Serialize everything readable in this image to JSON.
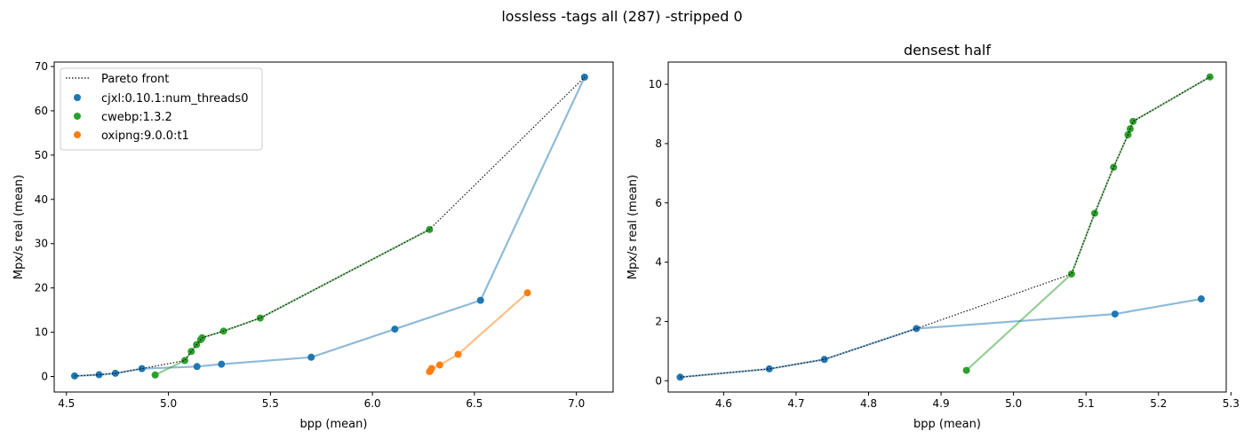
{
  "suptitle": "lossless -tags all (287) -stripped 0",
  "chart_data": [
    {
      "type": "scatter",
      "title": "",
      "xlabel": "bpp (mean)",
      "ylabel": "Mpx/s real (mean)",
      "xlim": [
        4.44,
        7.18
      ],
      "ylim": [
        -3.5,
        71
      ],
      "xticks": [
        4.5,
        5.0,
        5.5,
        6.0,
        6.5,
        7.0
      ],
      "xtick_labels": [
        "4.5",
        "5.0",
        "5.5",
        "6.0",
        "6.5",
        "7.0"
      ],
      "yticks": [
        0,
        10,
        20,
        30,
        40,
        50,
        60,
        70
      ],
      "ytick_labels": [
        "0",
        "10",
        "20",
        "30",
        "40",
        "50",
        "60",
        "70"
      ],
      "legend": {
        "position": "top-left",
        "entries": [
          "Pareto front",
          "cjxl:0.10.1:num_threads0",
          "cwebp:1.3.2",
          "oxipng:9.0.0:t1"
        ]
      },
      "series": [
        {
          "name": "cjxl:0.10.1:num_threads0",
          "color": "#1f77b4",
          "x": [
            4.54,
            4.66,
            4.74,
            4.87,
            5.14,
            5.26,
            5.7,
            6.11,
            6.53,
            7.04
          ],
          "y": [
            0.12,
            0.4,
            0.72,
            1.78,
            2.25,
            2.78,
            4.35,
            10.7,
            17.2,
            67.6
          ]
        },
        {
          "name": "cwebp:1.3.2",
          "color": "#2ca02c",
          "x": [
            4.935,
            5.08,
            5.112,
            5.138,
            5.158,
            5.161,
            5.165,
            5.27,
            5.45,
            6.28
          ],
          "y": [
            0.35,
            3.6,
            5.65,
            7.2,
            8.3,
            8.5,
            8.75,
            10.25,
            13.2,
            33.2
          ]
        },
        {
          "name": "oxipng:9.0.0:t1",
          "color": "#ff7f0e",
          "x": [
            6.28,
            6.285,
            6.29,
            6.33,
            6.42,
            6.76
          ],
          "y": [
            1.1,
            1.4,
            1.8,
            2.6,
            5.0,
            18.9
          ]
        }
      ],
      "pareto_front": {
        "x": [
          4.54,
          4.66,
          4.74,
          4.87,
          5.08,
          5.112,
          5.138,
          5.158,
          5.161,
          5.165,
          5.27,
          5.45,
          6.28,
          7.04
        ],
        "y": [
          0.12,
          0.4,
          0.72,
          1.78,
          3.6,
          5.65,
          7.2,
          8.3,
          8.5,
          8.75,
          10.25,
          13.2,
          33.2,
          67.6
        ]
      }
    },
    {
      "type": "scatter",
      "title": "densest half",
      "xlabel": "bpp (mean)",
      "ylabel": "Mpx/s real (mean)",
      "xlim": [
        4.5235,
        5.2935
      ],
      "ylim": [
        -0.38,
        10.75
      ],
      "xticks": [
        4.6,
        4.7,
        4.8,
        4.9,
        5.0,
        5.1,
        5.2,
        5.3
      ],
      "xtick_labels": [
        "4.6",
        "4.7",
        "4.8",
        "4.9",
        "5.0",
        "5.1",
        "5.2",
        "5.3"
      ],
      "yticks": [
        0,
        2,
        4,
        6,
        8,
        10
      ],
      "ytick_labels": [
        "0",
        "2",
        "4",
        "6",
        "8",
        "10"
      ],
      "series": [
        {
          "name": "cjxl:0.10.1:num_threads0",
          "color": "#1f77b4",
          "x": [
            4.54,
            4.663,
            4.739,
            4.866,
            5.14,
            5.259
          ],
          "y": [
            0.12,
            0.4,
            0.72,
            1.76,
            2.25,
            2.76
          ]
        },
        {
          "name": "cwebp:1.3.2",
          "color": "#2ca02c",
          "x": [
            4.935,
            5.08,
            5.112,
            5.138,
            5.158,
            5.161,
            5.165,
            5.271
          ],
          "y": [
            0.35,
            3.6,
            5.65,
            7.2,
            8.3,
            8.5,
            8.75,
            10.25
          ]
        }
      ],
      "pareto_front": {
        "x": [
          4.54,
          4.663,
          4.739,
          4.866,
          5.08,
          5.112,
          5.138,
          5.158,
          5.161,
          5.165,
          5.271
        ],
        "y": [
          0.12,
          0.4,
          0.72,
          1.76,
          3.6,
          5.65,
          7.2,
          8.3,
          8.5,
          8.75,
          10.25
        ]
      }
    }
  ]
}
